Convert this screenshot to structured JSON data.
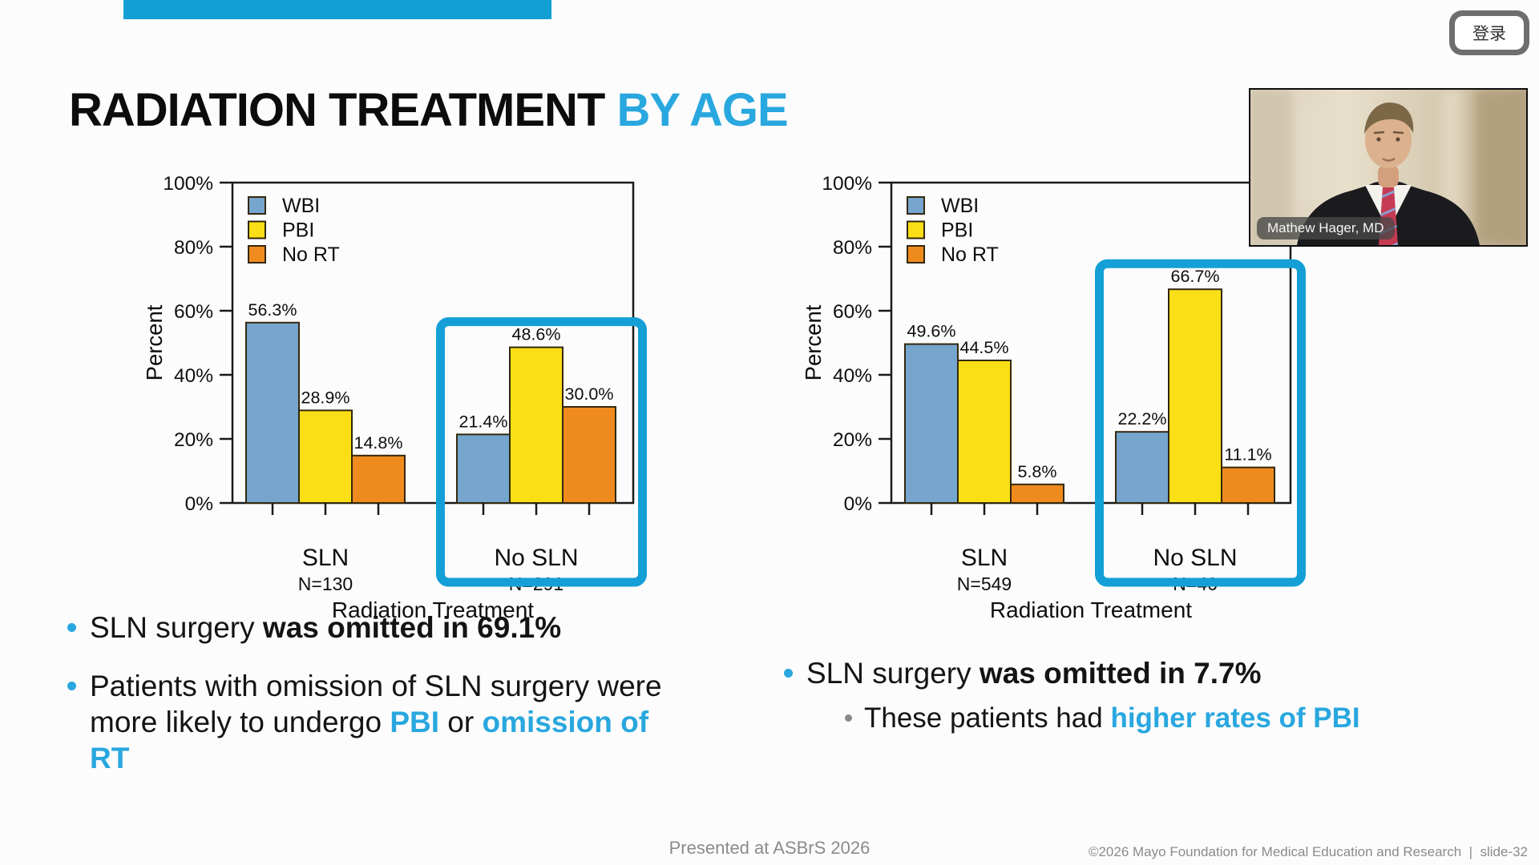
{
  "slide": {
    "title": {
      "black": "RADIATION TREATMENT ",
      "accent": "BY AGE"
    },
    "colors": {
      "accent": "#29A7DF",
      "highlight_box": "#14A0D6",
      "top_bar": "#119FD4",
      "footer_gray": "#8B8B8B"
    },
    "footer_center": "Presented at ASBrS 2026",
    "footer_right": "©2026 Mayo Foundation for Medical Education and Research  |  slide-32"
  },
  "bullets_left": [
    {
      "level": 1,
      "segments": [
        {
          "text": "SLN surgery "
        },
        {
          "text": "was omitted in 69.1%",
          "style": "bold"
        }
      ]
    },
    {
      "level": 1,
      "segments": [
        {
          "text": "Patients with omission of SLN surgery were\nmore likely to undergo "
        },
        {
          "text": "PBI",
          "style": "accent"
        },
        {
          "text": " or "
        },
        {
          "text": "omission of\nRT",
          "style": "accent"
        }
      ]
    }
  ],
  "bullets_right": [
    {
      "level": 1,
      "segments": [
        {
          "text": "SLN surgery "
        },
        {
          "text": "was omitted in 7.7%",
          "style": "bold"
        }
      ]
    },
    {
      "level": 2,
      "segments": [
        {
          "text": "These patients had "
        },
        {
          "text": "higher rates of PBI",
          "style": "accent"
        }
      ]
    }
  ],
  "chart_data": [
    {
      "type": "bar",
      "name": "radiation-treatment-left-chart",
      "title": "",
      "xlabel": "Radiation Treatment",
      "ylabel": "Percent",
      "ylim": [
        0,
        100
      ],
      "ytick_labels": [
        "0%",
        "20%",
        "40%",
        "60%",
        "80%",
        "100%"
      ],
      "grid": false,
      "legend_position": "top-left",
      "categories": [
        {
          "label": "SLN",
          "n": "N=130"
        },
        {
          "label": "No SLN",
          "n": "N=291"
        }
      ],
      "series": [
        {
          "name": "WBI",
          "color": "#76A5CD",
          "values": [
            56.3,
            21.4
          ]
        },
        {
          "name": "PBI",
          "color": "#FBDF16",
          "values": [
            28.9,
            48.6
          ]
        },
        {
          "name": "No RT",
          "color": "#EF8B1E",
          "values": [
            14.8,
            30.0
          ]
        }
      ],
      "highlight_group": 1
    },
    {
      "type": "bar",
      "name": "radiation-treatment-right-chart",
      "title": "",
      "xlabel": "Radiation Treatment",
      "ylabel": "Percent",
      "ylim": [
        0,
        100
      ],
      "ytick_labels": [
        "0%",
        "20%",
        "40%",
        "60%",
        "80%",
        "100%"
      ],
      "grid": false,
      "legend_position": "top-left",
      "categories": [
        {
          "label": "SLN",
          "n": "N=549"
        },
        {
          "label": "No SLN",
          "n": "N=46"
        }
      ],
      "series": [
        {
          "name": "WBI",
          "color": "#76A5CD",
          "values": [
            49.6,
            22.2
          ]
        },
        {
          "name": "PBI",
          "color": "#FBDF16",
          "values": [
            44.5,
            66.7
          ]
        },
        {
          "name": "No RT",
          "color": "#EF8B1E",
          "values": [
            5.8,
            11.1
          ]
        }
      ],
      "highlight_group": 1
    }
  ],
  "overlay": {
    "login_button": "登录",
    "presenter_name": "Mathew Hager, MD"
  }
}
